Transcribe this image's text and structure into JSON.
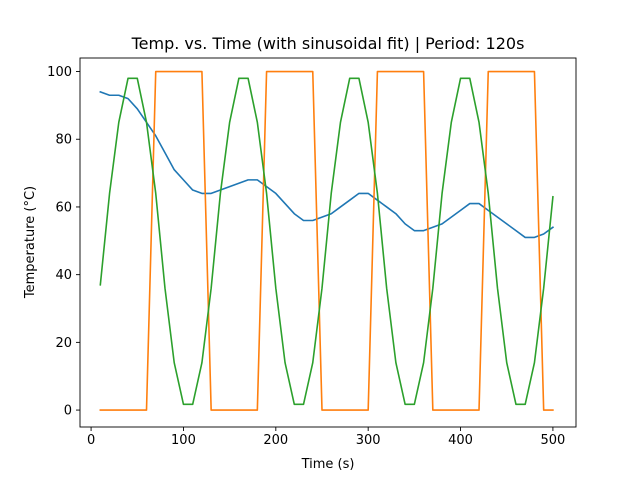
{
  "chart_data": {
    "type": "line",
    "title": "Temp. vs. Time (with sinusoidal fit) | Period: 120s",
    "xlabel": "Time (s)",
    "ylabel": "Temperature (°C)",
    "xlim": [
      -12,
      525
    ],
    "ylim": [
      -5,
      104
    ],
    "xticks": [
      0,
      100,
      200,
      300,
      400,
      500
    ],
    "yticks": [
      0,
      20,
      40,
      60,
      80,
      100
    ],
    "grid": false,
    "legend": "none",
    "series": [
      {
        "color": "#1f77b4",
        "x": [
          10,
          20,
          30,
          40,
          50,
          60,
          70,
          80,
          90,
          100,
          110,
          120,
          130,
          140,
          150,
          160,
          170,
          180,
          190,
          200,
          210,
          220,
          230,
          240,
          250,
          260,
          270,
          280,
          290,
          300,
          310,
          320,
          330,
          340,
          350,
          360,
          370,
          380,
          390,
          400,
          410,
          420,
          430,
          440,
          450,
          460,
          470,
          480,
          490,
          500
        ],
        "y": [
          94,
          93,
          93,
          92,
          89,
          85,
          81,
          76,
          71,
          68,
          65,
          64,
          64,
          65,
          66,
          67,
          68,
          68,
          66,
          64,
          61,
          58,
          56,
          56,
          57,
          58,
          60,
          62,
          64,
          64,
          62,
          60,
          58,
          55,
          53,
          53,
          54,
          55,
          57,
          59,
          61,
          61,
          59,
          57,
          55,
          53,
          51,
          51,
          52,
          54
        ]
      },
      {
        "color": "#ff7f0e",
        "x": [
          10,
          20,
          30,
          40,
          50,
          60,
          70,
          80,
          90,
          100,
          110,
          120,
          130,
          140,
          150,
          160,
          170,
          180,
          190,
          200,
          210,
          220,
          230,
          240,
          250,
          260,
          270,
          280,
          290,
          300,
          310,
          320,
          330,
          340,
          350,
          360,
          370,
          380,
          390,
          400,
          410,
          420,
          430,
          440,
          450,
          460,
          470,
          480,
          490,
          500
        ],
        "y": [
          0,
          0,
          0,
          0,
          0,
          0,
          100,
          100,
          100,
          100,
          100,
          100,
          0,
          0,
          0,
          0,
          0,
          0,
          100,
          100,
          100,
          100,
          100,
          100,
          0,
          0,
          0,
          0,
          0,
          0,
          100,
          100,
          100,
          100,
          100,
          100,
          0,
          0,
          0,
          0,
          0,
          0,
          100,
          100,
          100,
          100,
          100,
          100,
          0,
          0
        ]
      },
      {
        "color": "#2ca02c",
        "x": [
          10,
          20,
          30,
          40,
          50,
          60,
          70,
          80,
          90,
          100,
          110,
          120,
          130,
          140,
          150,
          160,
          170,
          180,
          190,
          200,
          210,
          220,
          230,
          240,
          250,
          260,
          270,
          280,
          290,
          300,
          310,
          320,
          330,
          340,
          350,
          360,
          370,
          380,
          390,
          400,
          410,
          420,
          430,
          440,
          450,
          460,
          470,
          480,
          490,
          500
        ],
        "y": [
          37,
          64,
          85,
          98,
          98,
          85,
          64,
          36,
          14,
          1.7,
          1.7,
          14,
          36,
          64,
          85,
          98,
          98,
          85,
          64,
          36,
          14,
          1.7,
          1.7,
          14,
          36,
          64,
          85,
          98,
          98,
          85,
          64,
          36,
          14,
          1.7,
          1.7,
          14,
          36,
          64,
          85,
          98,
          98,
          85,
          64,
          36,
          14,
          1.7,
          1.7,
          14,
          36,
          63
        ]
      }
    ]
  }
}
